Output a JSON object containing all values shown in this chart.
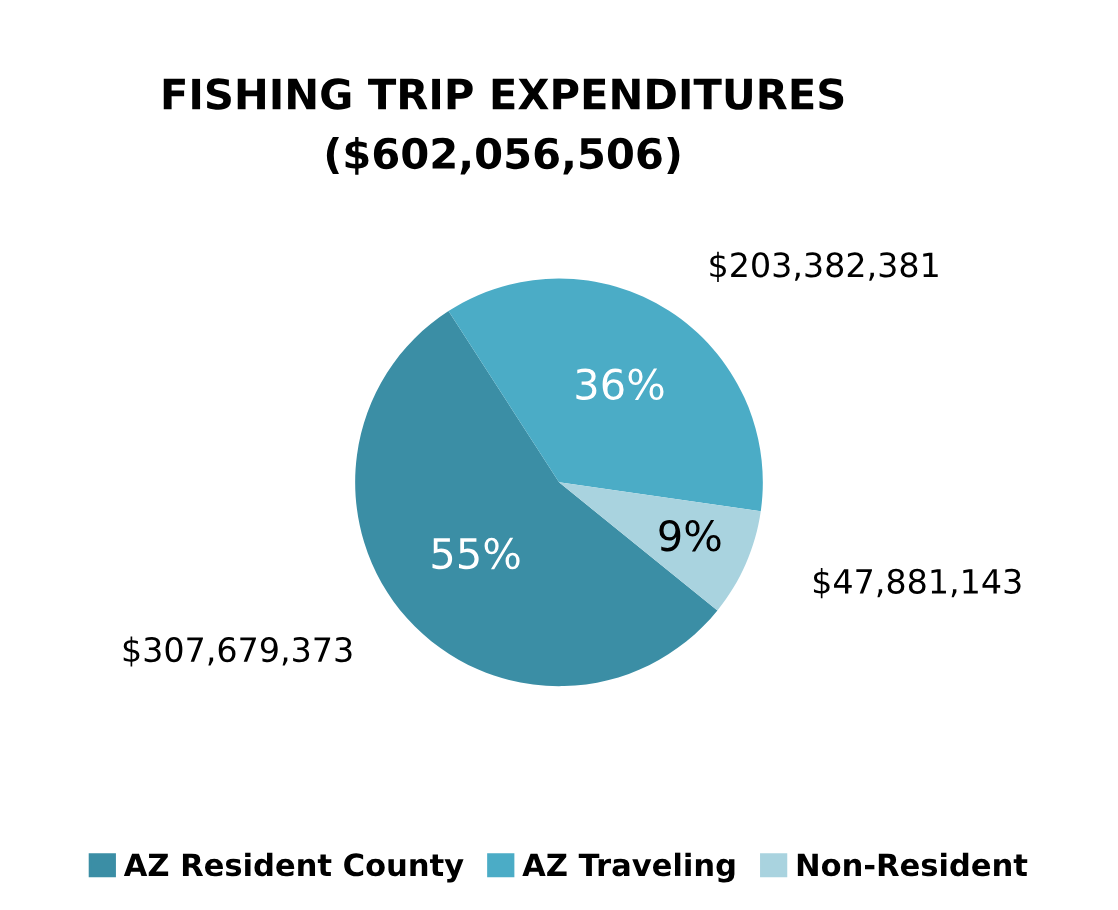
{
  "chart_data": {
    "type": "pie",
    "title": "FISHING TRIP EXPENDITURES\n($602,056,506)",
    "categories": [
      "AZ Resident County",
      "AZ Traveling",
      "Non-Resident"
    ],
    "values": [
      307679373,
      203382381,
      47881143
    ],
    "value_labels": [
      "$307,679,373",
      "$203,382,381",
      "$47,881,143"
    ],
    "colors": [
      "#3b8ea5",
      "#4bacc6",
      "#a9d3df"
    ],
    "annotations": [
      {
        "text": "55%",
        "x": "AZ Resident County"
      },
      {
        "text": "36%",
        "x": "AZ Traveling"
      },
      {
        "text": "9%",
        "x": "Non-Resident"
      }
    ],
    "legend": "bottom"
  }
}
